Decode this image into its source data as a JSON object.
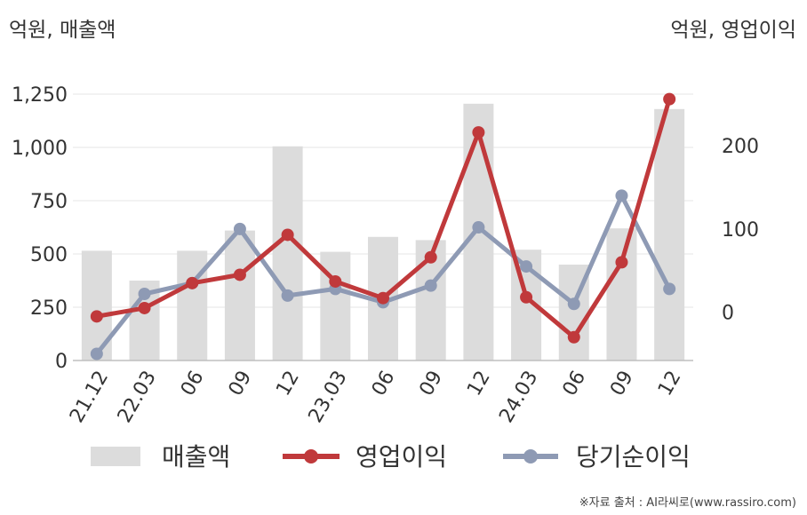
{
  "left_unit_label": "억원, 매출액",
  "right_unit_label": "억원, 영업이익",
  "source_text": "※자료 출처 : AI라씨로(www.rassiro.com)",
  "colors": {
    "bar": "#dcdcdc",
    "operating_profit": "#c0393b",
    "net_income": "#8e9ab4",
    "grid": "#e6e6e6",
    "axis": "#bfbfbf",
    "tick_text": "#333333"
  },
  "chart_data": {
    "type": "bar",
    "categories": [
      "21.12",
      "22.03",
      "06",
      "09",
      "12",
      "23.03",
      "06",
      "09",
      "12",
      "24.03",
      "06",
      "09",
      "12"
    ],
    "left_axis": {
      "ylim": [
        0,
        1250
      ],
      "ticks": [
        "0",
        "250",
        "500",
        "750",
        "1,000",
        "1,250"
      ],
      "tick_values": [
        0,
        250,
        500,
        750,
        1000,
        1250
      ]
    },
    "right_axis": {
      "ylim": [
        -58,
        262
      ],
      "ticks": [
        "0",
        "100",
        "200"
      ],
      "tick_values": [
        0,
        100,
        200
      ]
    },
    "series": [
      {
        "name": "매출액",
        "type": "bar",
        "axis": "left",
        "values": [
          515,
          375,
          515,
          610,
          1005,
          510,
          580,
          565,
          1205,
          520,
          450,
          620,
          1180
        ]
      },
      {
        "name": "영업이익",
        "type": "line",
        "axis": "right",
        "values": [
          -5,
          5,
          35,
          45,
          93,
          37,
          17,
          66,
          216,
          18,
          -30,
          60,
          256
        ]
      },
      {
        "name": "당기순이익",
        "type": "line",
        "axis": "right",
        "values": [
          -50,
          22,
          35,
          100,
          20,
          28,
          12,
          32,
          102,
          55,
          10,
          140,
          28
        ]
      }
    ],
    "grid": true,
    "legend_position": "bottom"
  },
  "legend": [
    {
      "label": "매출액",
      "kind": "bar"
    },
    {
      "label": "영업이익",
      "kind": "line"
    },
    {
      "label": "당기순이익",
      "kind": "line"
    }
  ]
}
